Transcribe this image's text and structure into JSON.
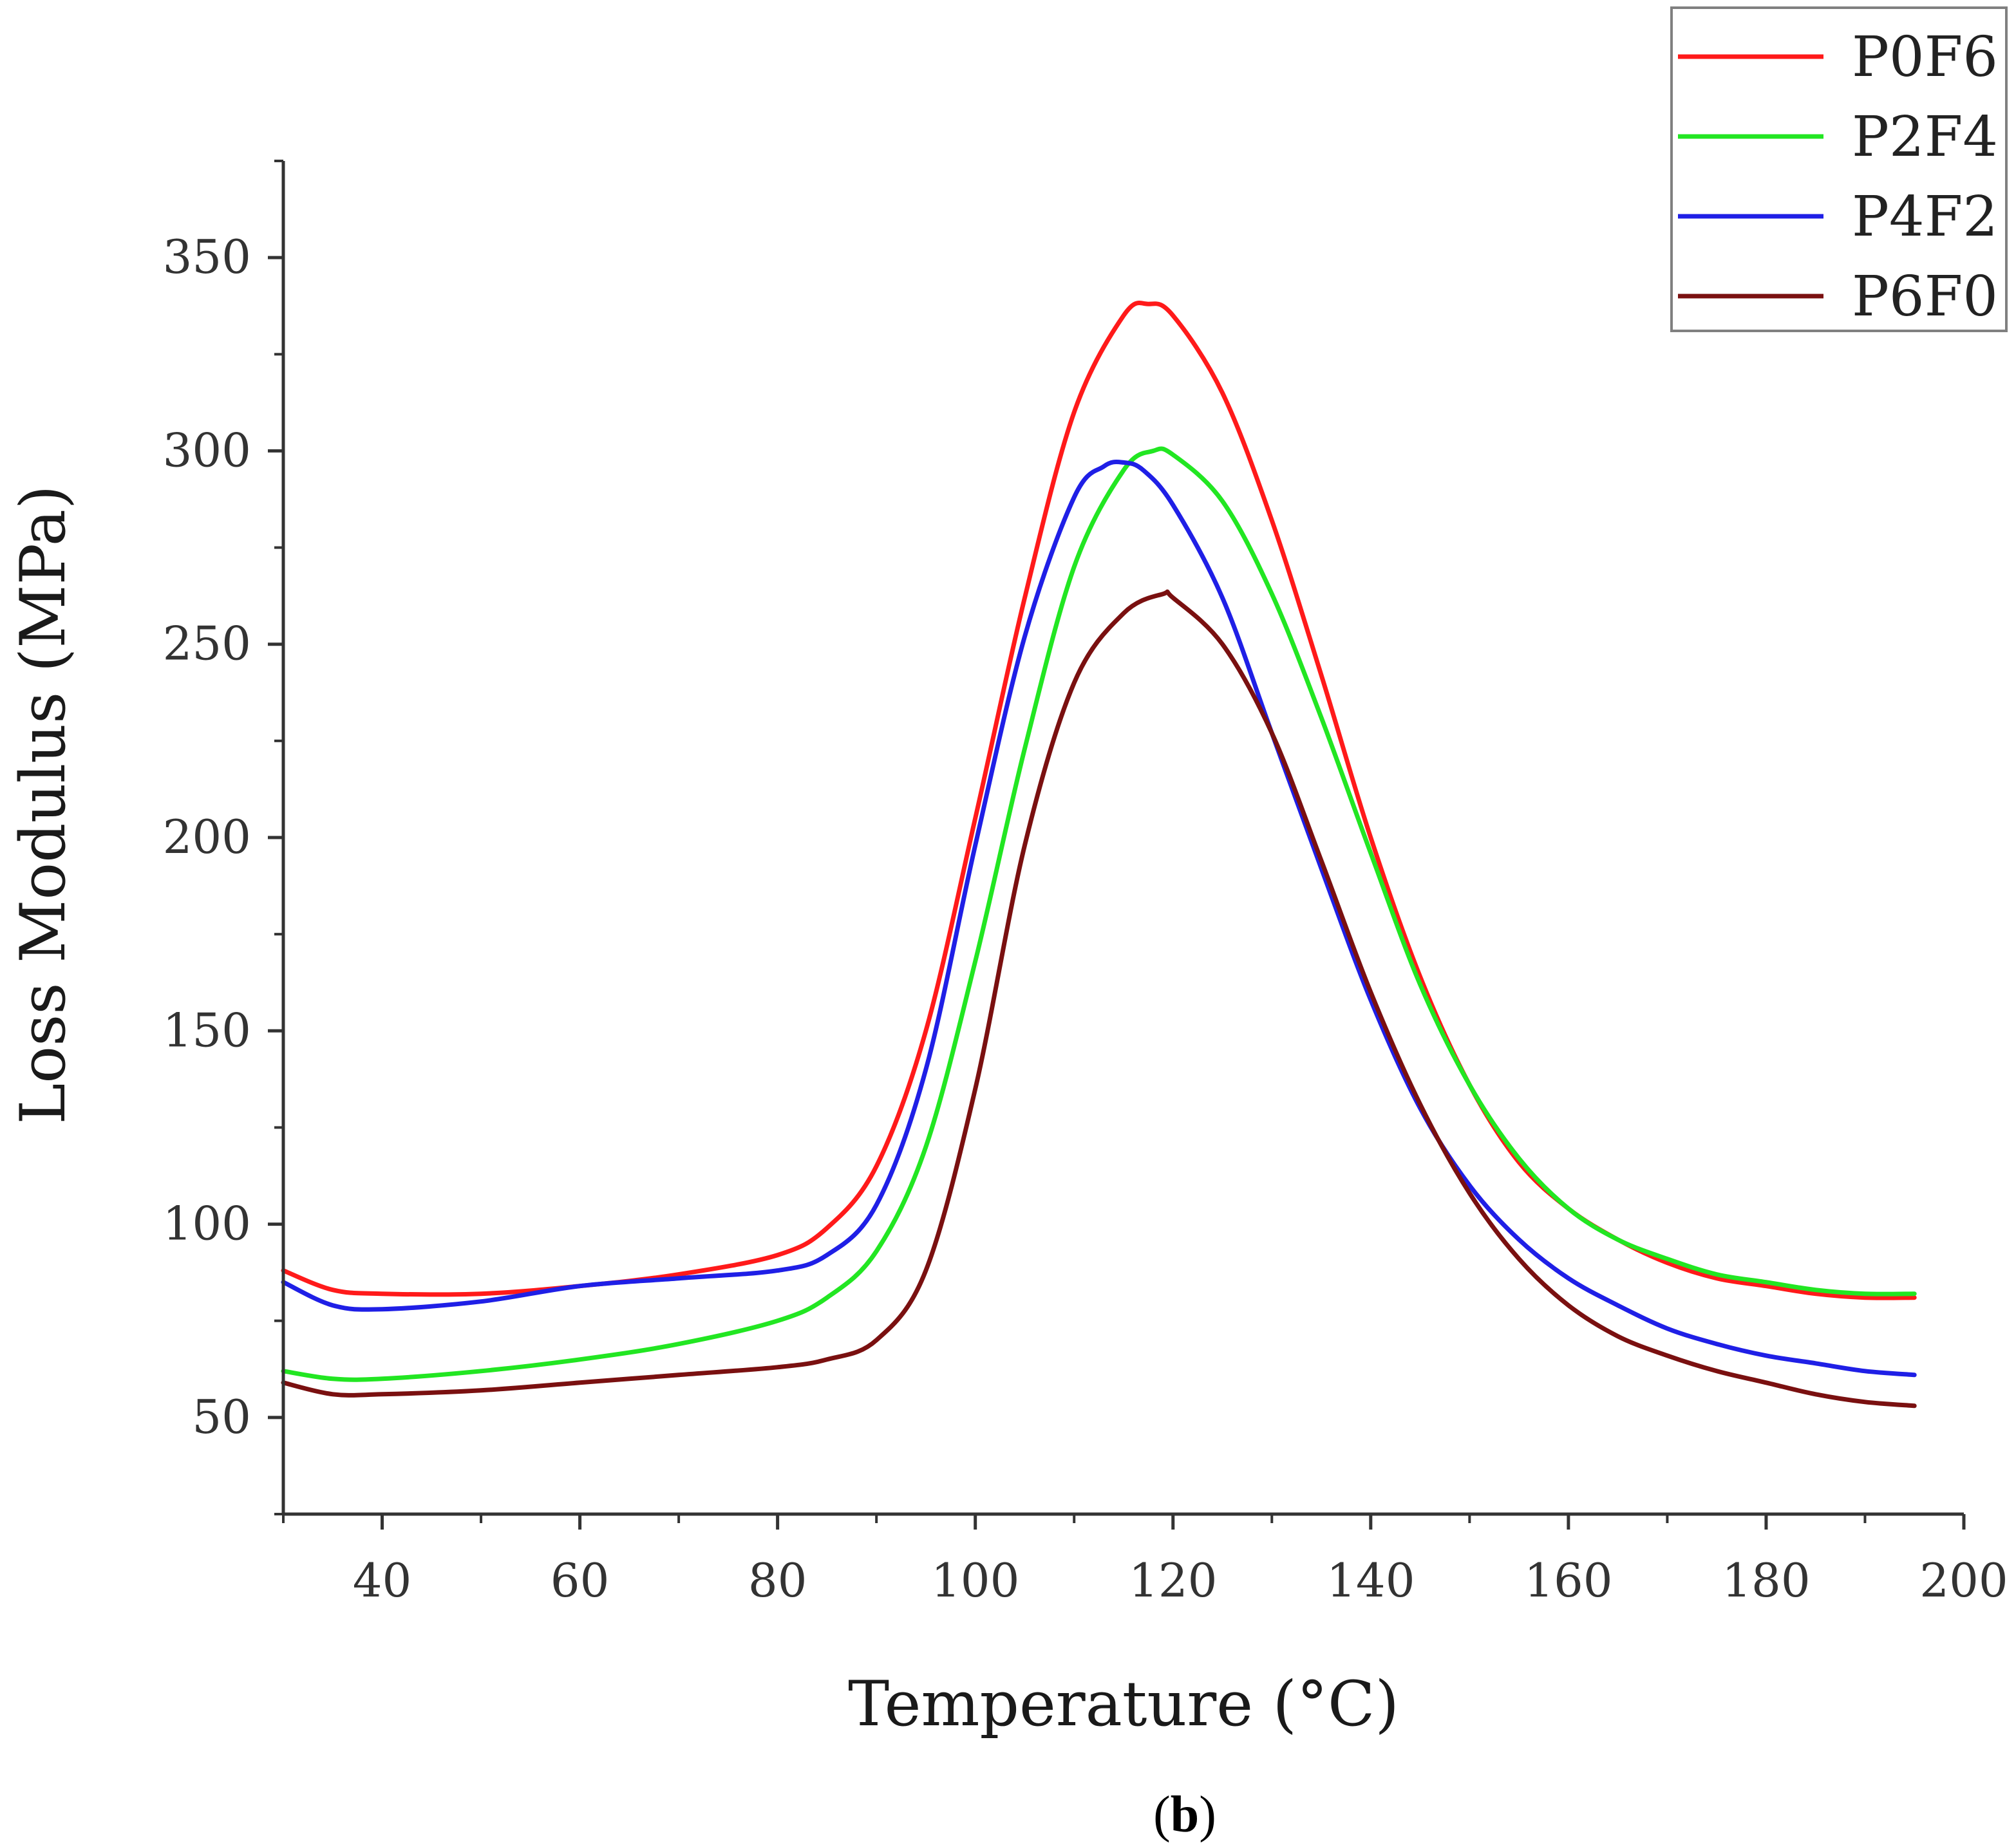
{
  "chart_data": {
    "type": "line",
    "title": "",
    "xlabel": "Temperature (°C)",
    "ylabel": "Loss Modulus (MPa)",
    "xlim": [
      30,
      200
    ],
    "ylim": [
      25,
      375
    ],
    "xticks": [
      40,
      60,
      80,
      100,
      120,
      140,
      160,
      180,
      200
    ],
    "yticks": [
      50,
      100,
      150,
      200,
      250,
      300,
      350
    ],
    "legend_position": "top-right",
    "caption_text": "b",
    "series": [
      {
        "name": "P0F6",
        "color": "#ff1a1a",
        "x": [
          30,
          35,
          40,
          50,
          60,
          70,
          80,
          85,
          90,
          95,
          100,
          105,
          110,
          115,
          117.5,
          120,
          125,
          130,
          135,
          140,
          145,
          150,
          155,
          160,
          165,
          170,
          175,
          180,
          185,
          190,
          195
        ],
        "y": [
          88,
          83,
          82,
          82,
          84,
          87,
          92,
          99,
          115,
          150,
          205,
          262,
          310,
          335,
          338,
          335,
          315,
          282,
          242,
          200,
          164,
          136,
          116,
          104,
          96,
          90,
          86,
          84,
          82,
          81,
          81
        ]
      },
      {
        "name": "P2F4",
        "color": "#22e622",
        "x": [
          30,
          35,
          40,
          50,
          60,
          70,
          80,
          85,
          90,
          95,
          100,
          105,
          110,
          115,
          118,
          120,
          125,
          130,
          135,
          140,
          145,
          150,
          155,
          160,
          165,
          170,
          175,
          180,
          185,
          190,
          195
        ],
        "y": [
          62,
          60,
          60,
          62,
          65,
          69,
          75,
          81,
          93,
          120,
          168,
          223,
          270,
          295,
          300,
          299,
          287,
          263,
          231,
          196,
          162,
          136,
          117,
          104,
          96,
          91,
          87,
          85,
          83,
          82,
          82
        ]
      },
      {
        "name": "P4F2",
        "color": "#1f1fe6",
        "x": [
          30,
          35,
          40,
          50,
          60,
          70,
          80,
          85,
          90,
          95,
          100,
          105,
          110,
          113,
          115,
          117,
          120,
          125,
          130,
          135,
          140,
          145,
          150,
          155,
          160,
          165,
          170,
          175,
          180,
          185,
          190,
          195
        ],
        "y": [
          85,
          79,
          78,
          80,
          84,
          86,
          88,
          92,
          105,
          140,
          198,
          252,
          288,
          296,
          297,
          295,
          286,
          262,
          227,
          192,
          158,
          130,
          110,
          96,
          86,
          79,
          73,
          69,
          66,
          64,
          62,
          61
        ]
      },
      {
        "name": "P6F0",
        "color": "#7a1010",
        "x": [
          30,
          35,
          40,
          50,
          60,
          70,
          80,
          85,
          90,
          95,
          100,
          105,
          110,
          115,
          119,
          120,
          125,
          130,
          135,
          140,
          145,
          150,
          155,
          160,
          165,
          170,
          175,
          180,
          185,
          190,
          195
        ],
        "y": [
          59,
          56,
          56,
          57,
          59,
          61,
          63,
          65,
          70,
          88,
          135,
          198,
          240,
          258,
          263,
          262,
          250,
          227,
          194,
          160,
          131,
          108,
          91,
          79,
          71,
          66,
          62,
          59,
          56,
          54,
          53
        ]
      }
    ]
  }
}
